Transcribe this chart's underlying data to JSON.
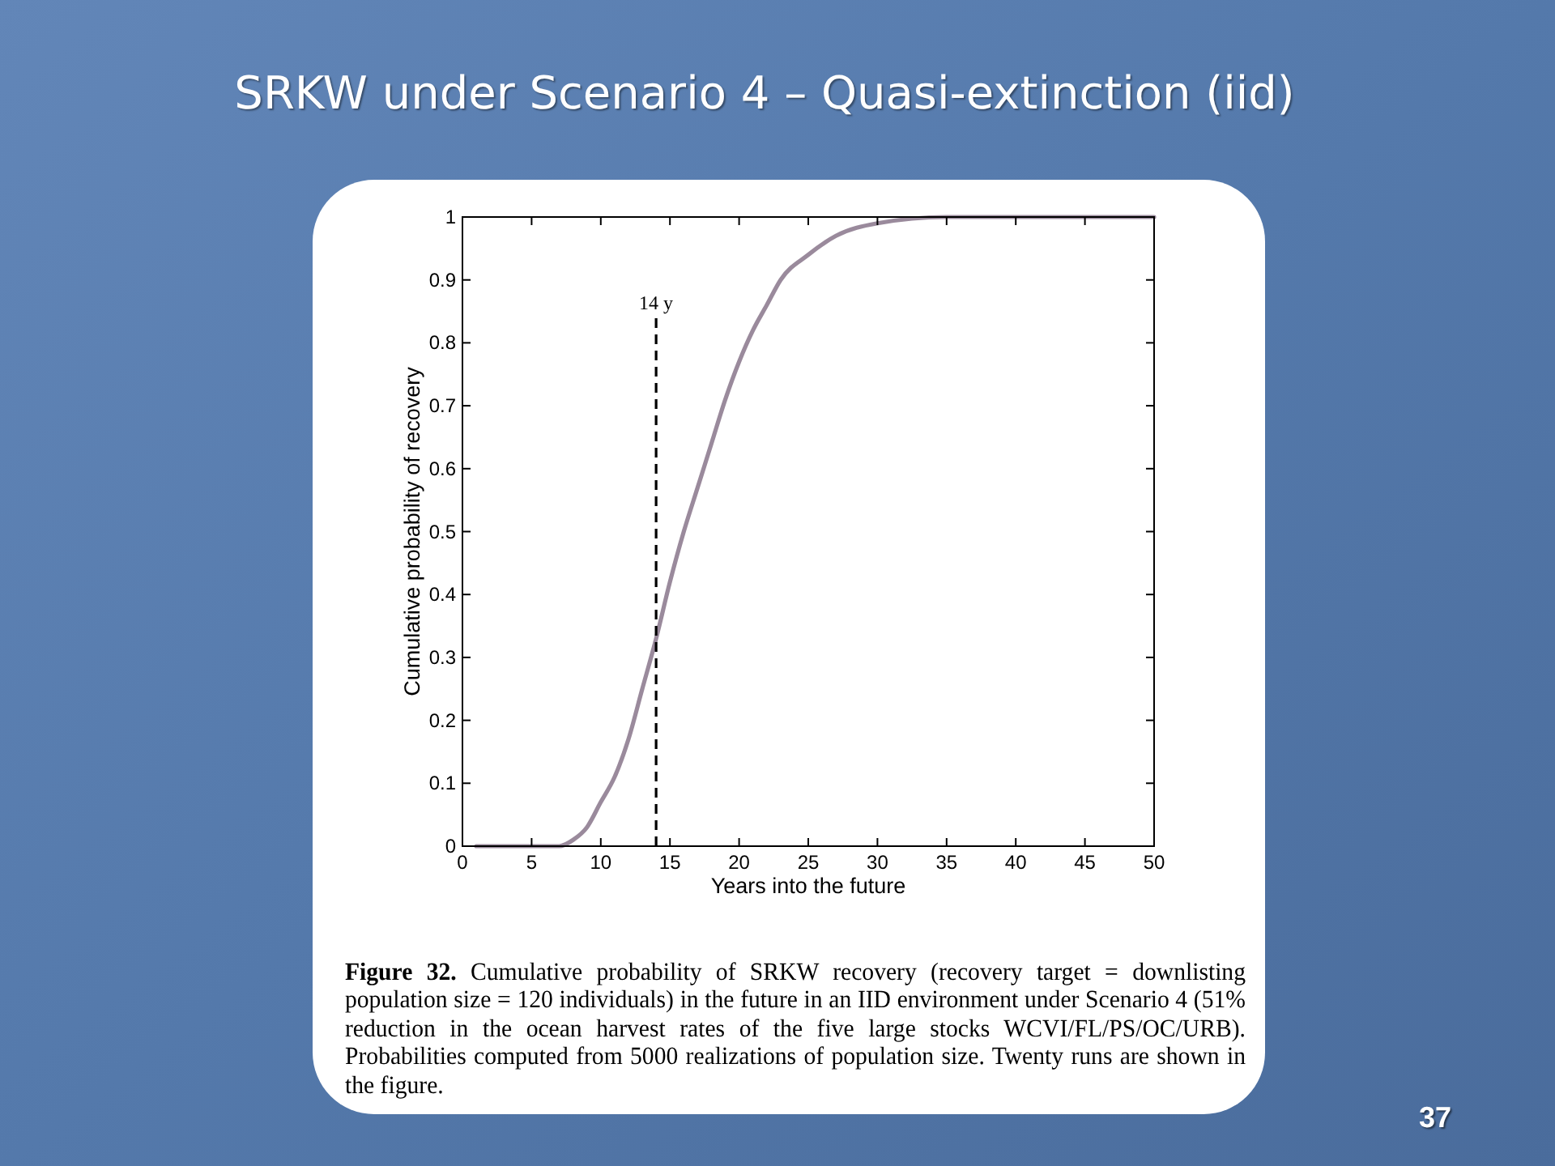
{
  "chart_data": {
    "type": "line",
    "title": "SRKW under Scenario 4 – Quasi-extinction (iid)",
    "xlabel": "Years into the future",
    "ylabel": "Cumulative probability of recovery",
    "x": [
      1,
      6.5,
      7,
      8,
      9,
      10,
      11,
      12,
      13,
      14,
      15,
      16,
      17,
      18,
      19,
      20,
      21,
      22,
      23,
      25,
      27,
      30,
      35,
      40,
      50
    ],
    "series": [
      {
        "color": "#9a8a9c",
        "values": [
          0,
          0,
          0,
          0.01,
          0.03,
          0.07,
          0.11,
          0.17,
          0.25,
          0.33,
          0.42,
          0.5,
          0.57,
          0.64,
          0.71,
          0.77,
          0.82,
          0.86,
          0.9,
          0.94,
          0.97,
          0.99,
          1,
          1,
          1
        ]
      }
    ],
    "xlim": [
      0,
      50
    ],
    "xticks": [
      0,
      5,
      10,
      15,
      20,
      25,
      30,
      35,
      40,
      45,
      50
    ],
    "ylim": [
      0,
      1
    ],
    "yticks": [
      0,
      0.1,
      0.2,
      0.3,
      0.4,
      0.5,
      0.6,
      0.7,
      0.8,
      0.9,
      1
    ],
    "ref_lines": [
      {
        "axis": "x",
        "value": 14,
        "label": "14 y",
        "color": "#000000",
        "line_style": "dashed"
      }
    ],
    "line_style": "solid",
    "annotations": [
      "Figure 32.",
      "Cumulative probability of SRKW recovery (recovery target = downlisting population size = 120 individuals) in the future in an IID environment under Scenario 4 (51% reduction in the ocean harvest rates of the five large stocks WCVI/FL/PS/OC/URB). Probabilities computed from 5000 realizations of population size. Twenty runs are shown in the figure.",
      "37"
    ]
  }
}
